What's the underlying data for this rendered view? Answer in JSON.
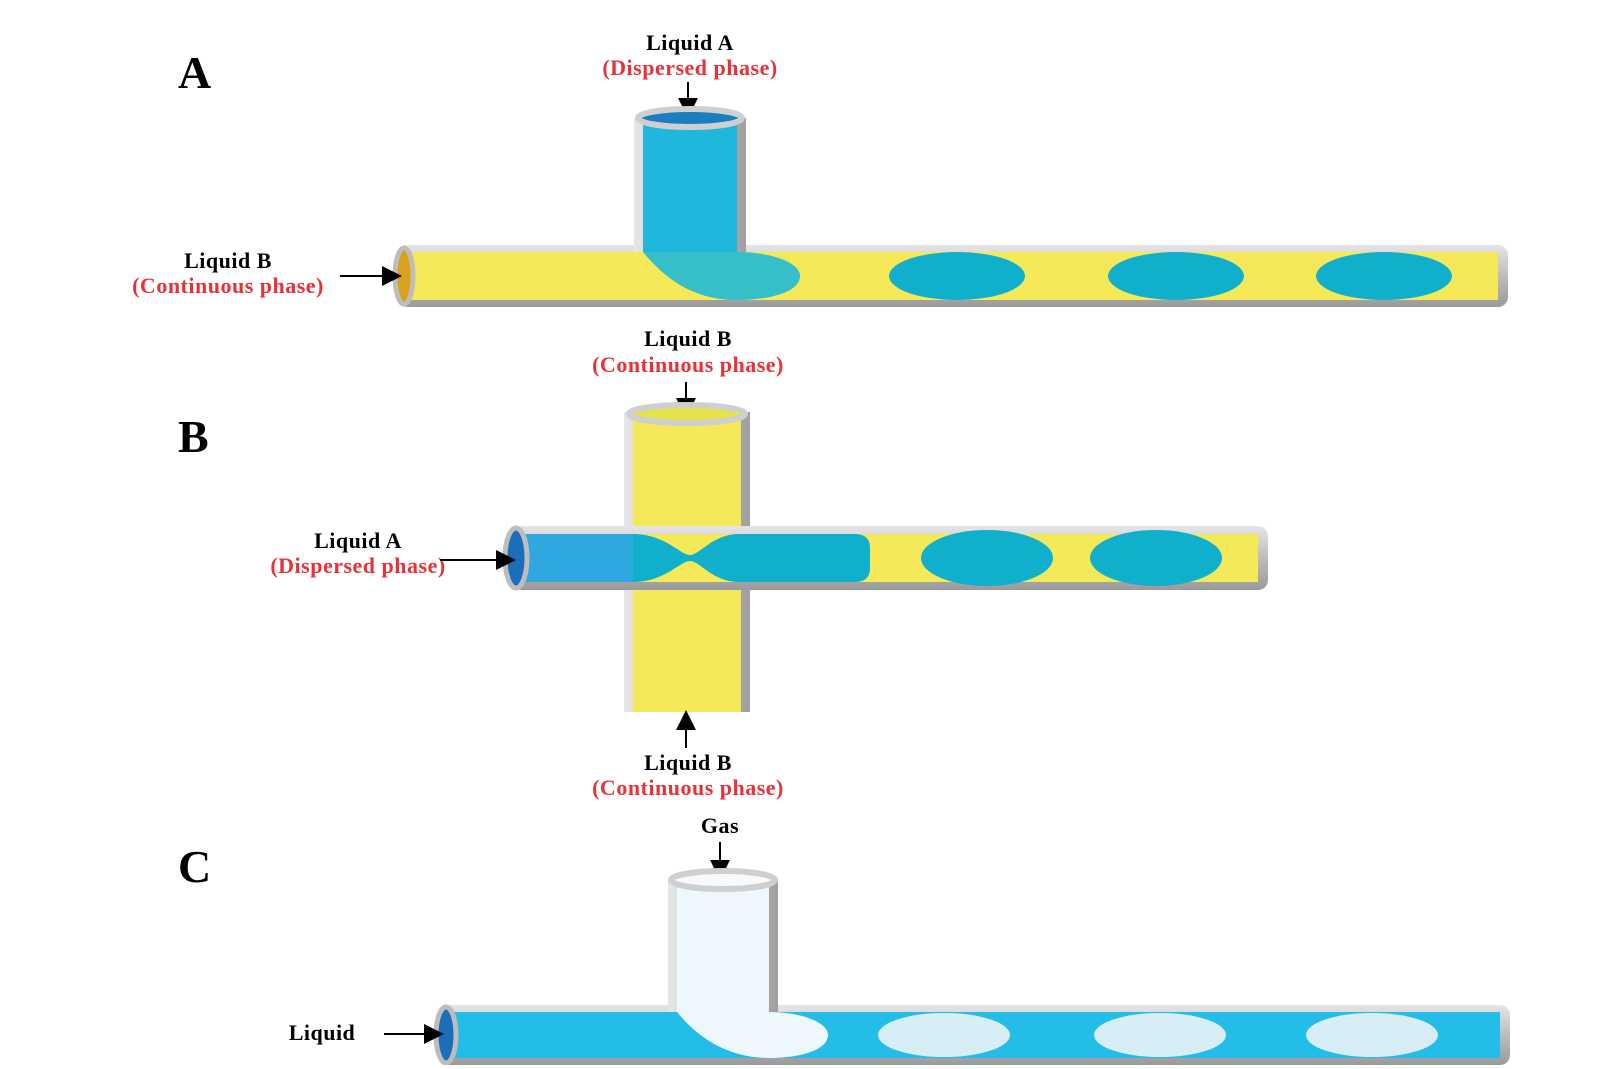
{
  "panels": [
    {
      "letter": "A",
      "top_label": {
        "name": "Liquid A",
        "phase": "(Dispersed phase)"
      },
      "side_label": {
        "name": "Liquid B",
        "phase": "(Continuous phase)"
      }
    },
    {
      "letter": "B",
      "top_label": {
        "name": "Liquid B",
        "phase": "(Continuous phase)"
      },
      "side_label": {
        "name": "Liquid A",
        "phase": "(Dispersed phase)"
      },
      "bottom_label": {
        "name": "Liquid B",
        "phase": "(Continuous phase)"
      }
    },
    {
      "letter": "C",
      "top_label": {
        "name": "Gas"
      },
      "side_label": {
        "name": "Liquid"
      }
    }
  ],
  "colors": {
    "continuous_yellow": "#f5e95a",
    "dispersed_blue": "#1fb8dc",
    "droplet_teal": "#10b0cc",
    "gas_white": "#eef7fb",
    "tube_gray": "#c9c9c9",
    "label_red": "#e8323a"
  }
}
